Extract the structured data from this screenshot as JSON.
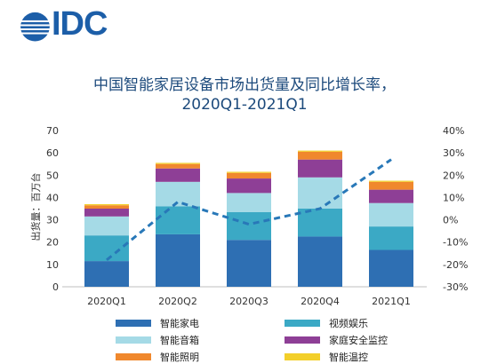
{
  "logo": {
    "text": "IDC",
    "icon": "idc-globe-icon"
  },
  "title": {
    "line1": "中国智能家居设备市场出货量及同比增长率，",
    "line2": "2020Q1-2021Q1"
  },
  "chart_data": {
    "type": "bar",
    "stacked": true,
    "categories": [
      "2020Q1",
      "2020Q2",
      "2020Q3",
      "2020Q4",
      "2021Q1"
    ],
    "ylabel": "出货量：百万台",
    "ylim": [
      0,
      70
    ],
    "yticks": [
      "0",
      "10",
      "20",
      "30",
      "40",
      "50",
      "60",
      "70"
    ],
    "y2lim": [
      -30,
      40
    ],
    "y2ticks": [
      "-30%",
      "-20%",
      "-10%",
      "0%",
      "10%",
      "20%",
      "30%",
      "40%"
    ],
    "grid": false,
    "series": [
      {
        "name": "智能家电",
        "color": "#2e6fb3",
        "values": [
          11.5,
          23.5,
          21,
          22.5,
          16.5
        ]
      },
      {
        "name": "视频娱乐",
        "color": "#3ba9c5",
        "values": [
          11.5,
          12.5,
          12.5,
          12.5,
          10.5
        ]
      },
      {
        "name": "智能音箱",
        "color": "#a5dae6",
        "values": [
          8.5,
          11,
          8.5,
          14,
          10.5
        ]
      },
      {
        "name": "家庭安全监控",
        "color": "#8e3f96",
        "values": [
          3.5,
          6,
          6.5,
          8,
          6
        ]
      },
      {
        "name": "智能照明",
        "color": "#f0882d",
        "values": [
          1.5,
          2,
          2.5,
          3.5,
          3.5
        ]
      },
      {
        "name": "智能温控",
        "color": "#f3cf2a",
        "values": [
          0.5,
          0.5,
          0.5,
          0.5,
          0.5
        ]
      }
    ],
    "line": {
      "name": "",
      "color": "#2878b8",
      "dashed": true,
      "values": [
        -18,
        8,
        -2,
        5,
        27
      ]
    }
  }
}
